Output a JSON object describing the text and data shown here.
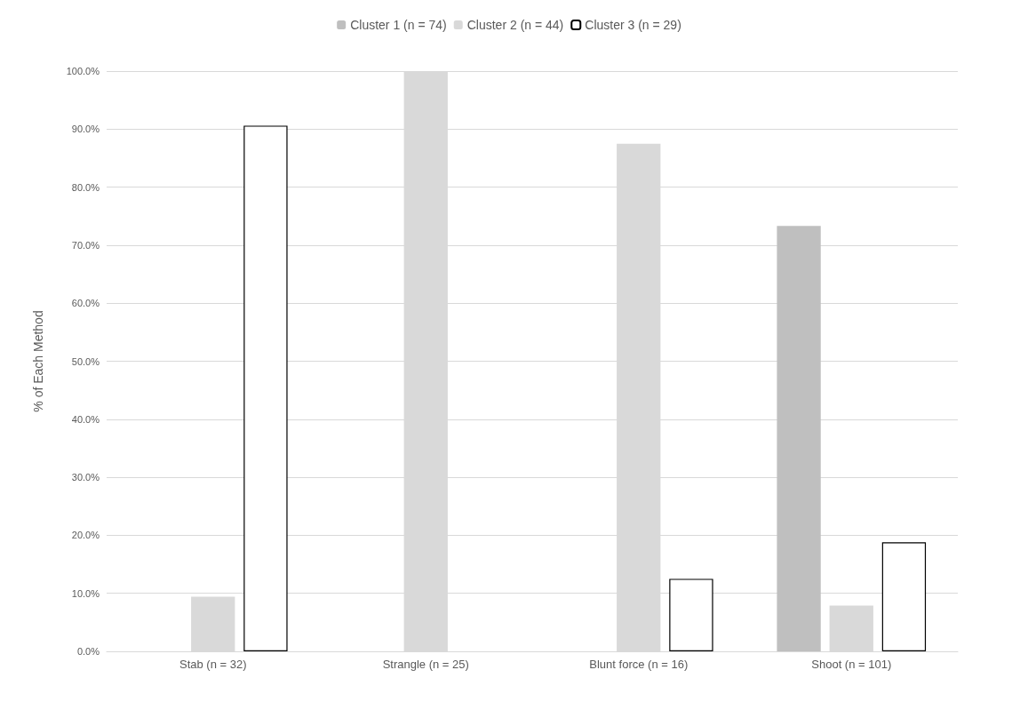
{
  "chart_data": {
    "type": "bar",
    "ylabel": "% of Each Method",
    "categories": [
      "Stab (n = 32)",
      "Strangle (n = 25)",
      "Blunt force (n = 16)",
      "Shoot (n = 101)"
    ],
    "series": [
      {
        "name": "Cluster 1 (n = 74)",
        "color": "#bfbfbf",
        "values": [
          0,
          0,
          0,
          73.3
        ]
      },
      {
        "name": "Cluster 2 (n = 44)",
        "color": "#d9d9d9",
        "values": [
          9.4,
          100,
          87.5,
          7.9
        ]
      },
      {
        "name": "Cluster 3 (n = 29)",
        "color": "#ffffff",
        "values": [
          90.6,
          0,
          12.5,
          18.8
        ]
      }
    ],
    "ylim": [
      0,
      100
    ],
    "yticks": [
      {
        "value": 0,
        "label": "0.0%"
      },
      {
        "value": 10,
        "label": "10.0%"
      },
      {
        "value": 20,
        "label": "20.0%"
      },
      {
        "value": 30,
        "label": "30.0%"
      },
      {
        "value": 40,
        "label": "40.0%"
      },
      {
        "value": 50,
        "label": "50.0%"
      },
      {
        "value": 60,
        "label": "60.0%"
      },
      {
        "value": 70,
        "label": "70.0%"
      },
      {
        "value": 80,
        "label": "80.0%"
      },
      {
        "value": 90,
        "label": "90.0%"
      },
      {
        "value": 100,
        "label": "100.0%"
      }
    ],
    "grid": "y",
    "legend": "top"
  }
}
